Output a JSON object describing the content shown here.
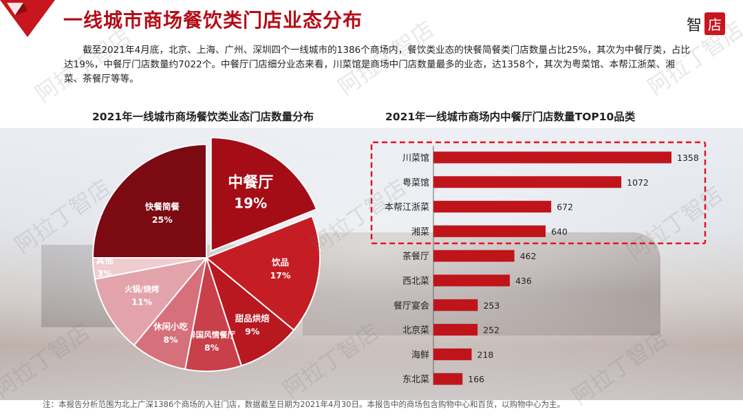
{
  "header": {
    "title": "一线城市商场餐饮类门店业态分布",
    "brand_zhi": "智",
    "brand_dian": "店"
  },
  "paragraph": "截至2021年4月底，北京、上海、广州、深圳四个一线城市的1386个商场内，餐饮类业态的快餐简餐类门店数量占比25%，其次为中餐厅类，占比达19%，中餐厅门店数量约7022个。中餐厅门店细分业态来看，川菜馆是商场中门店数量最多的业态，达1358个，其次为粤菜馆、本帮江浙菜、湘菜、茶餐厅等等。",
  "watermark": "阿拉丁智店",
  "colors": {
    "brand_red": "#b30d17",
    "bar_red": "#c0141b",
    "highlight_border": "#e0141e"
  },
  "chart_data": [
    {
      "type": "pie",
      "title": "2021年一线城市商场餐饮类业态门店数量分布",
      "slices": [
        {
          "label": "中餐厅",
          "value": 19,
          "display": "19%",
          "color": "#a50d16",
          "exploded": true
        },
        {
          "label": "饮品",
          "value": 17,
          "display": "17%",
          "color": "#c41e24"
        },
        {
          "label": "甜品烘焙",
          "value": 9,
          "display": "9%",
          "color": "#b8181f"
        },
        {
          "label": "异国风情餐厅",
          "value": 8,
          "display": "8%",
          "color": "#c9404a"
        },
        {
          "label": "休闲小吃",
          "value": 8,
          "display": "8%",
          "color": "#d6707a"
        },
        {
          "label": "火锅/烧烤",
          "value": 11,
          "display": "11%",
          "color": "#e3a3ab"
        },
        {
          "label": "其他",
          "value": 3,
          "display": "3%",
          "color": "#efccd0"
        },
        {
          "label": "快餐简餐",
          "value": 25,
          "display": "25%",
          "color": "#7b0a12"
        }
      ]
    },
    {
      "type": "bar",
      "orientation": "horizontal",
      "title": "2021年一线城市商场内中餐厅门店数量TOP10品类",
      "categories": [
        "川菜馆",
        "粤菜馆",
        "本帮江浙菜",
        "湘菜",
        "茶餐厅",
        "西北菜",
        "餐厅宴会",
        "北京菜",
        "海鲜",
        "东北菜"
      ],
      "values": [
        1358,
        1072,
        672,
        640,
        462,
        436,
        253,
        252,
        218,
        166
      ],
      "highlighted_top": 4,
      "xlim": [
        0,
        1358
      ]
    }
  ],
  "footnote": "注：本报告分析范围为北上广深1386个商场的入驻门店，数据截至日期为2021年4月30日。本报告中的商场包含购物中心和百货，以购物中心为主。"
}
